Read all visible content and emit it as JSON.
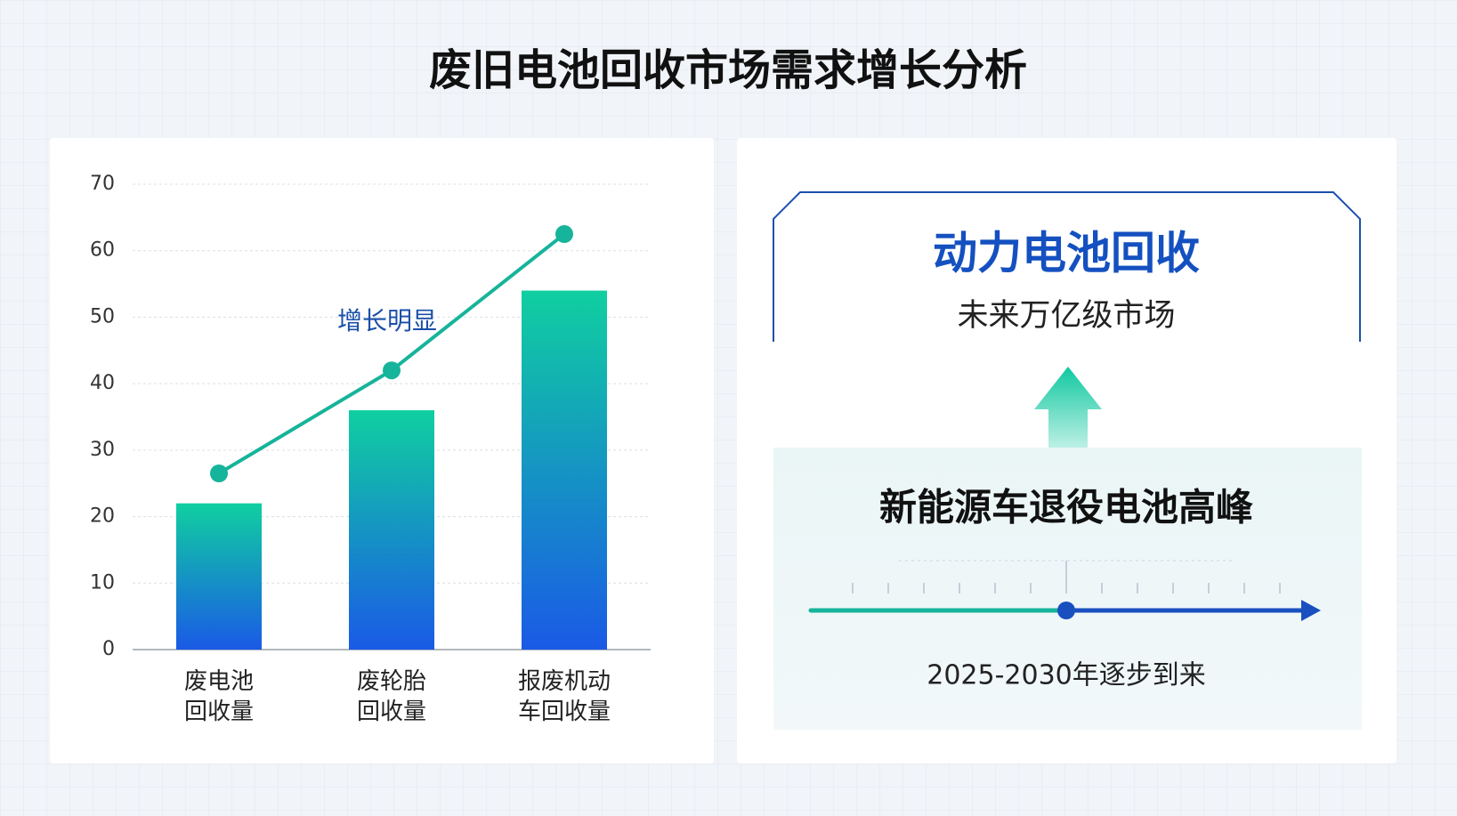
{
  "title": "废旧电池回收市场需求增长分析",
  "chart_data": {
    "type": "bar",
    "categories": [
      [
        "废电池",
        "回收量"
      ],
      [
        "废轮胎",
        "回收量"
      ],
      [
        "报废机动",
        "车回收量"
      ]
    ],
    "series": [
      {
        "type": "bar",
        "colors": [
          "#10cfa0",
          "#1a5ae6"
        ],
        "values": [
          22,
          36,
          54
        ]
      },
      {
        "type": "line",
        "color": "#16b49a",
        "values": [
          26.5,
          42,
          62.5
        ]
      }
    ],
    "annotation": "增长明显",
    "ylim": [
      0,
      70
    ],
    "yticks": [
      0,
      10,
      20,
      30,
      40,
      50,
      60,
      70
    ],
    "grid": true
  },
  "panel": {
    "heading": "动力电池回收",
    "subheading": "未来万亿级市场",
    "peak": "新能源车退役电池高峰",
    "timeline_label": "2025-2030年逐步到来"
  }
}
